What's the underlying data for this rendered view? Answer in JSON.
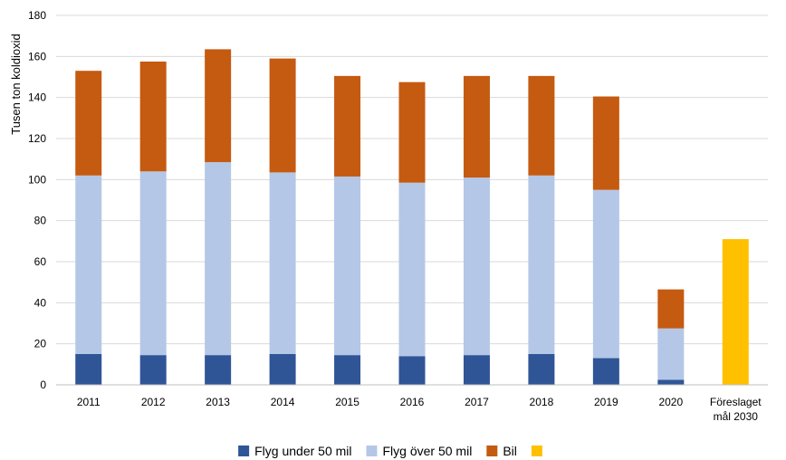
{
  "chart_data": {
    "type": "bar",
    "stacked": true,
    "title": "",
    "xlabel": "",
    "ylabel": "Tusen ton koldioxid",
    "ylim": [
      0,
      180
    ],
    "yticks": [
      0,
      20,
      40,
      60,
      80,
      100,
      120,
      140,
      160,
      180
    ],
    "grid": true,
    "legend_position": "bottom",
    "categories": [
      "2011",
      "2012",
      "2013",
      "2014",
      "2015",
      "2016",
      "2017",
      "2018",
      "2019",
      "2020",
      "Föreslaget mål 2030"
    ],
    "series": [
      {
        "name": "Flyg under 50 mil",
        "color": "#2f5597",
        "values": [
          15,
          14.5,
          14.5,
          15,
          14.5,
          14,
          14.5,
          15,
          13,
          2.5,
          null
        ]
      },
      {
        "name": "Flyg över 50 mil",
        "color": "#b4c7e7",
        "values": [
          87,
          89.5,
          94,
          88.5,
          87,
          84.5,
          86.5,
          87,
          82,
          25,
          null
        ]
      },
      {
        "name": "Bil",
        "color": "#c55a11",
        "values": [
          51,
          53.5,
          55,
          55.5,
          49,
          49,
          49.5,
          48.5,
          45.5,
          19,
          null
        ]
      },
      {
        "name": "",
        "color": "#ffc000",
        "values": [
          null,
          null,
          null,
          null,
          null,
          null,
          null,
          null,
          null,
          null,
          71
        ]
      }
    ]
  }
}
